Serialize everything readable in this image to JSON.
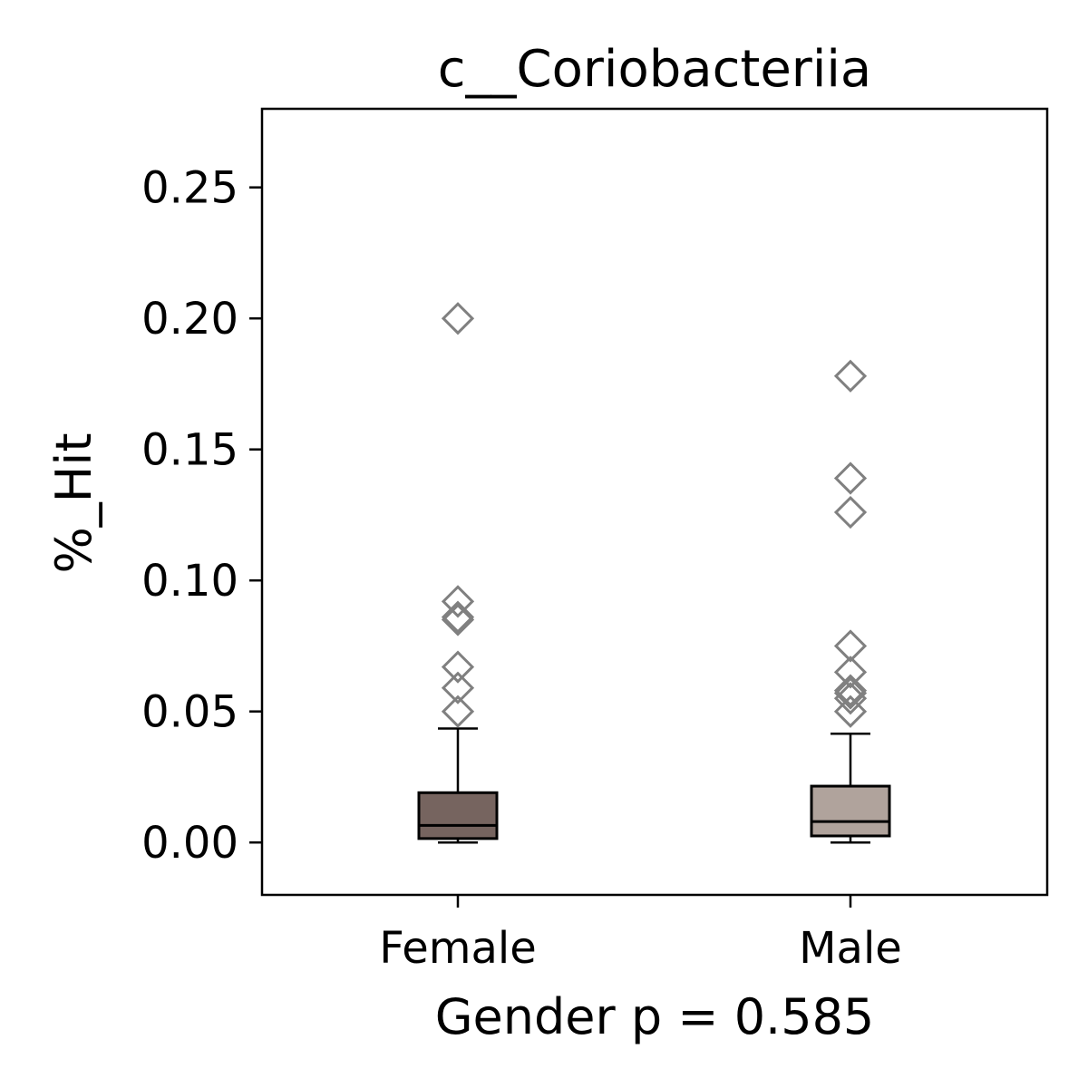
{
  "chart_data": {
    "type": "box",
    "title": "c__Coriobacteriia",
    "xlabel": "Gender p = 0.585",
    "ylabel": "%_Hit",
    "ylim": [
      -0.02,
      0.28
    ],
    "yticks": [
      "0.00",
      "0.05",
      "0.10",
      "0.15",
      "0.20",
      "0.25"
    ],
    "ytick_values": [
      0.0,
      0.05,
      0.1,
      0.15,
      0.2,
      0.25
    ],
    "grid": false,
    "categories": [
      "Female",
      "Male"
    ],
    "boxes": [
      {
        "name": "Female",
        "color": "#76645f",
        "whisker_low": 0.0,
        "q1": 0.0015,
        "median": 0.0065,
        "q3": 0.019,
        "whisker_high": 0.0435,
        "outliers": [
          0.2,
          0.092,
          0.086,
          0.085,
          0.067,
          0.059,
          0.05
        ]
      },
      {
        "name": "Male",
        "color": "#b0a39c",
        "whisker_low": 0.0,
        "q1": 0.0025,
        "median": 0.008,
        "q3": 0.0215,
        "whisker_high": 0.0415,
        "outliers": [
          0.178,
          0.139,
          0.126,
          0.075,
          0.065,
          0.058,
          0.057,
          0.055,
          0.05
        ]
      }
    ],
    "outlier_marker": "diamond",
    "outlier_color": "#808080"
  }
}
